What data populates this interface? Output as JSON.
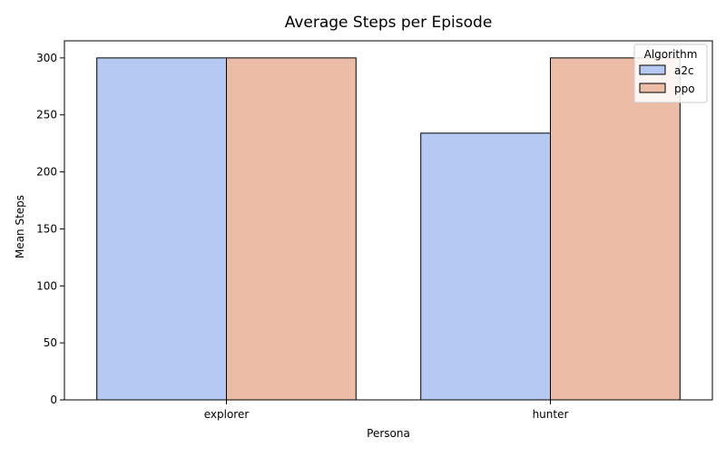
{
  "chart_data": {
    "type": "bar",
    "title": "Average Steps per Episode",
    "xlabel": "Persona",
    "ylabel": "Mean Steps",
    "categories": [
      "explorer",
      "hunter"
    ],
    "series": [
      {
        "name": "a2c",
        "values": [
          300,
          234
        ],
        "color": "#b5c9f2"
      },
      {
        "name": "ppo",
        "values": [
          300,
          300
        ],
        "color": "#ecbca6"
      }
    ],
    "ylim": [
      0,
      315
    ],
    "yticks": [
      0,
      50,
      100,
      150,
      200,
      250,
      300
    ],
    "grid": false,
    "legend": {
      "title": "Algorithm",
      "placement": "top-right"
    },
    "bar_edge_color": "#000000"
  }
}
